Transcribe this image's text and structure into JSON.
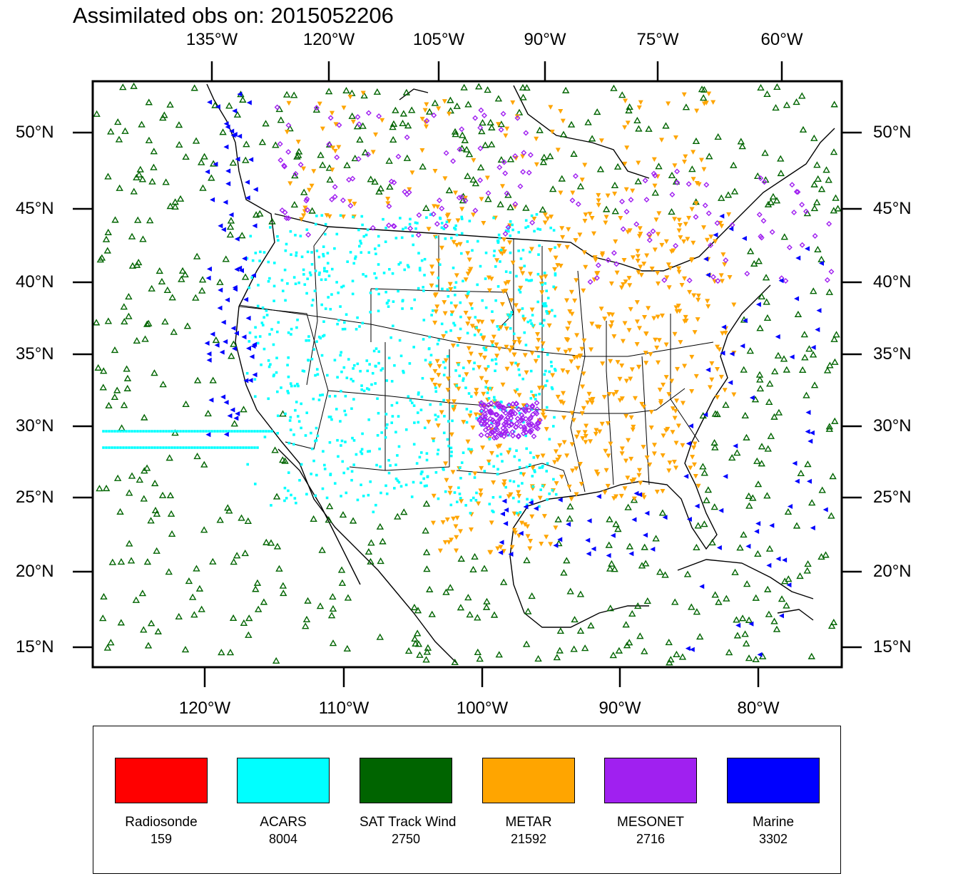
{
  "title": "Assimilated obs on: 2015052206",
  "map": {
    "top_lon_labels": [
      "135°W",
      "120°W",
      "105°W",
      "90°W",
      "75°W",
      "60°W"
    ],
    "bottom_lon_labels": [
      "120°W",
      "110°W",
      "100°W",
      "90°W",
      "80°W"
    ],
    "lat_labels": [
      "50°N",
      "45°N",
      "40°N",
      "35°N",
      "30°N",
      "25°N",
      "20°N",
      "15°N"
    ],
    "extent": {
      "lon": [
        -128,
        -74
      ],
      "lat": [
        14,
        53
      ]
    }
  },
  "colors": {
    "radiosonde": "#ff0000",
    "acars": "#00ffff",
    "sat_track_wind": "#006400",
    "metar": "#ffa500",
    "mesonet": "#a020f0",
    "marine": "#0000ff"
  },
  "legend": [
    {
      "name": "Radiosonde",
      "count": "159",
      "color": "#ff0000"
    },
    {
      "name": "ACARS",
      "count": "8004",
      "color": "#00ffff"
    },
    {
      "name": "SAT Track Wind",
      "count": "2750",
      "color": "#006400"
    },
    {
      "name": "METAR",
      "count": "21592",
      "color": "#ffa500"
    },
    {
      "name": "MESONET",
      "count": "2716",
      "color": "#a020f0"
    },
    {
      "name": "Marine",
      "count": "3302",
      "color": "#0000ff"
    }
  ]
}
